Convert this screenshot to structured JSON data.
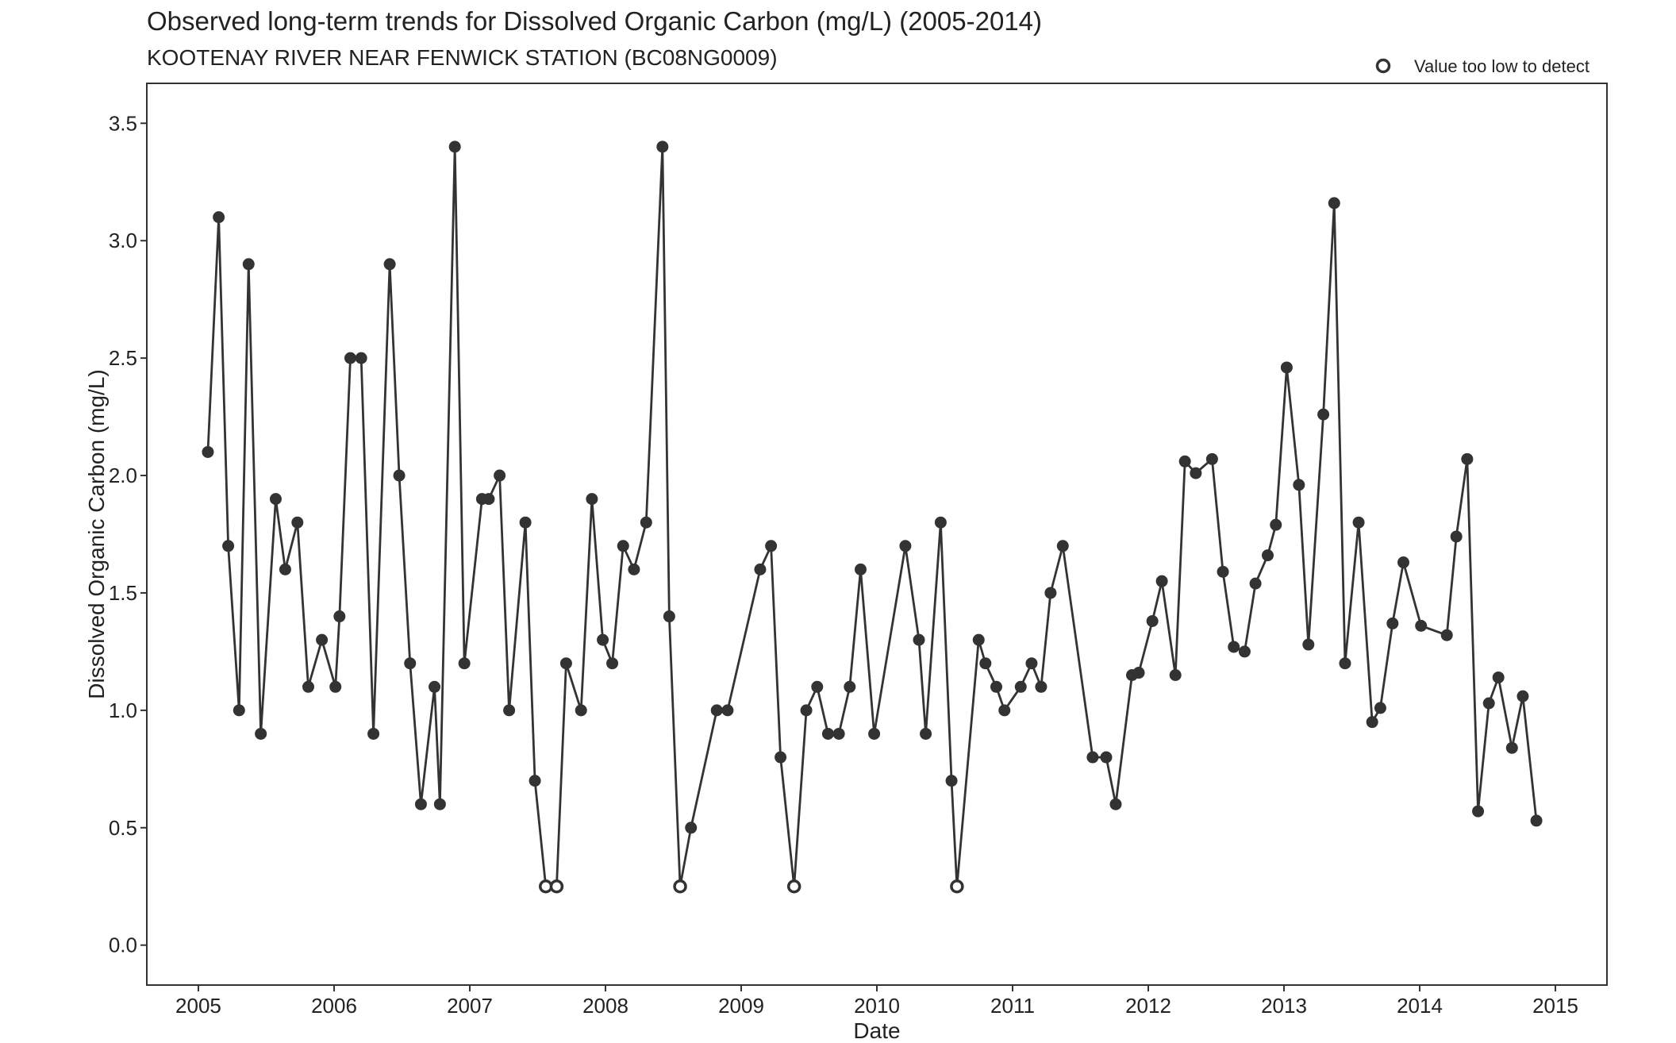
{
  "chart_data": {
    "type": "line",
    "title": "Observed long-term trends for Dissolved Organic Carbon (mg/L) (2005-2014)",
    "subtitle": "KOOTENAY RIVER NEAR FENWICK STATION (BC08NG0009)",
    "xlabel": "Date",
    "ylabel": "Dissolved Organic Carbon (mg/L)",
    "xlim": [
      2004.62,
      2015.38
    ],
    "ylim": [
      -0.17,
      3.67
    ],
    "x_ticks": [
      2005,
      2006,
      2007,
      2008,
      2009,
      2010,
      2011,
      2012,
      2013,
      2014,
      2015
    ],
    "x_tick_labels": [
      "2005",
      "2006",
      "2007",
      "2008",
      "2009",
      "2010",
      "2011",
      "2012",
      "2013",
      "2014",
      "2015"
    ],
    "y_ticks": [
      0,
      0.5,
      1,
      1.5,
      2,
      2.5,
      3,
      3.5
    ],
    "y_tick_labels": [
      "0.0",
      "0.5",
      "1.0",
      "1.5",
      "2.0",
      "2.5",
      "3.0",
      "3.5"
    ],
    "grid": false,
    "legend": {
      "position": "top-right",
      "entries": [
        {
          "label": "Value too low to detect",
          "marker": "open-circle"
        }
      ]
    },
    "series_color": "#333333",
    "fields": [
      "date_decimal_year",
      "value",
      "below_detection"
    ],
    "points": [
      [
        2005.07,
        2.1,
        0
      ],
      [
        2005.15,
        3.1,
        0
      ],
      [
        2005.22,
        1.7,
        0
      ],
      [
        2005.3,
        1.0,
        0
      ],
      [
        2005.37,
        2.9,
        0
      ],
      [
        2005.46,
        0.9,
        0
      ],
      [
        2005.57,
        1.9,
        0
      ],
      [
        2005.64,
        1.6,
        0
      ],
      [
        2005.73,
        1.8,
        0
      ],
      [
        2005.81,
        1.1,
        0
      ],
      [
        2005.91,
        1.3,
        0
      ],
      [
        2006.01,
        1.1,
        0
      ],
      [
        2006.04,
        1.4,
        0
      ],
      [
        2006.12,
        2.5,
        0
      ],
      [
        2006.2,
        2.5,
        0
      ],
      [
        2006.29,
        0.9,
        0
      ],
      [
        2006.41,
        2.9,
        0
      ],
      [
        2006.48,
        2.0,
        0
      ],
      [
        2006.56,
        1.2,
        0
      ],
      [
        2006.64,
        0.6,
        0
      ],
      [
        2006.74,
        1.1,
        0
      ],
      [
        2006.78,
        0.6,
        0
      ],
      [
        2006.89,
        3.4,
        0
      ],
      [
        2006.96,
        1.2,
        0
      ],
      [
        2007.09,
        1.9,
        0
      ],
      [
        2007.14,
        1.9,
        0
      ],
      [
        2007.22,
        2.0,
        0
      ],
      [
        2007.29,
        1.0,
        0
      ],
      [
        2007.41,
        1.8,
        0
      ],
      [
        2007.48,
        0.7,
        0
      ],
      [
        2007.56,
        0.25,
        1
      ],
      [
        2007.64,
        0.25,
        1
      ],
      [
        2007.71,
        1.2,
        0
      ],
      [
        2007.82,
        1.0,
        0
      ],
      [
        2007.9,
        1.9,
        0
      ],
      [
        2007.98,
        1.3,
        0
      ],
      [
        2008.05,
        1.2,
        0
      ],
      [
        2008.13,
        1.7,
        0
      ],
      [
        2008.21,
        1.6,
        0
      ],
      [
        2008.3,
        1.8,
        0
      ],
      [
        2008.42,
        3.4,
        0
      ],
      [
        2008.47,
        1.4,
        0
      ],
      [
        2008.55,
        0.25,
        1
      ],
      [
        2008.63,
        0.5,
        0
      ],
      [
        2008.82,
        1.0,
        0
      ],
      [
        2008.9,
        1.0,
        0
      ],
      [
        2009.14,
        1.6,
        0
      ],
      [
        2009.22,
        1.7,
        0
      ],
      [
        2009.29,
        0.8,
        0
      ],
      [
        2009.39,
        0.25,
        1
      ],
      [
        2009.48,
        1.0,
        0
      ],
      [
        2009.56,
        1.1,
        0
      ],
      [
        2009.64,
        0.9,
        0
      ],
      [
        2009.72,
        0.9,
        0
      ],
      [
        2009.8,
        1.1,
        0
      ],
      [
        2009.88,
        1.6,
        0
      ],
      [
        2009.98,
        0.9,
        0
      ],
      [
        2010.21,
        1.7,
        0
      ],
      [
        2010.31,
        1.3,
        0
      ],
      [
        2010.36,
        0.9,
        0
      ],
      [
        2010.47,
        1.8,
        0
      ],
      [
        2010.55,
        0.7,
        0
      ],
      [
        2010.59,
        0.25,
        1
      ],
      [
        2010.75,
        1.3,
        0
      ],
      [
        2010.8,
        1.2,
        0
      ],
      [
        2010.88,
        1.1,
        0
      ],
      [
        2010.94,
        1.0,
        0
      ],
      [
        2011.06,
        1.1,
        0
      ],
      [
        2011.14,
        1.2,
        0
      ],
      [
        2011.21,
        1.1,
        0
      ],
      [
        2011.28,
        1.5,
        0
      ],
      [
        2011.37,
        1.7,
        0
      ],
      [
        2011.59,
        0.8,
        0
      ],
      [
        2011.69,
        0.8,
        0
      ],
      [
        2011.76,
        0.6,
        0
      ],
      [
        2011.88,
        1.15,
        0
      ],
      [
        2011.93,
        1.16,
        0
      ],
      [
        2012.03,
        1.38,
        0
      ],
      [
        2012.1,
        1.55,
        0
      ],
      [
        2012.2,
        1.15,
        0
      ],
      [
        2012.27,
        2.06,
        0
      ],
      [
        2012.35,
        2.01,
        0
      ],
      [
        2012.47,
        2.07,
        0
      ],
      [
        2012.55,
        1.59,
        0
      ],
      [
        2012.63,
        1.27,
        0
      ],
      [
        2012.71,
        1.25,
        0
      ],
      [
        2012.79,
        1.54,
        0
      ],
      [
        2012.88,
        1.66,
        0
      ],
      [
        2012.94,
        1.79,
        0
      ],
      [
        2013.02,
        2.46,
        0
      ],
      [
        2013.11,
        1.96,
        0
      ],
      [
        2013.18,
        1.28,
        0
      ],
      [
        2013.29,
        2.26,
        0
      ],
      [
        2013.37,
        3.16,
        0
      ],
      [
        2013.45,
        1.2,
        0
      ],
      [
        2013.55,
        1.8,
        0
      ],
      [
        2013.65,
        0.95,
        0
      ],
      [
        2013.71,
        1.01,
        0
      ],
      [
        2013.8,
        1.37,
        0
      ],
      [
        2013.88,
        1.63,
        0
      ],
      [
        2014.01,
        1.36,
        0
      ],
      [
        2014.2,
        1.32,
        0
      ],
      [
        2014.27,
        1.74,
        0
      ],
      [
        2014.35,
        2.07,
        0
      ],
      [
        2014.43,
        0.57,
        0
      ],
      [
        2014.51,
        1.03,
        0
      ],
      [
        2014.58,
        1.14,
        0
      ],
      [
        2014.68,
        0.84,
        0
      ],
      [
        2014.76,
        1.06,
        0
      ],
      [
        2014.86,
        0.53,
        0
      ]
    ]
  }
}
